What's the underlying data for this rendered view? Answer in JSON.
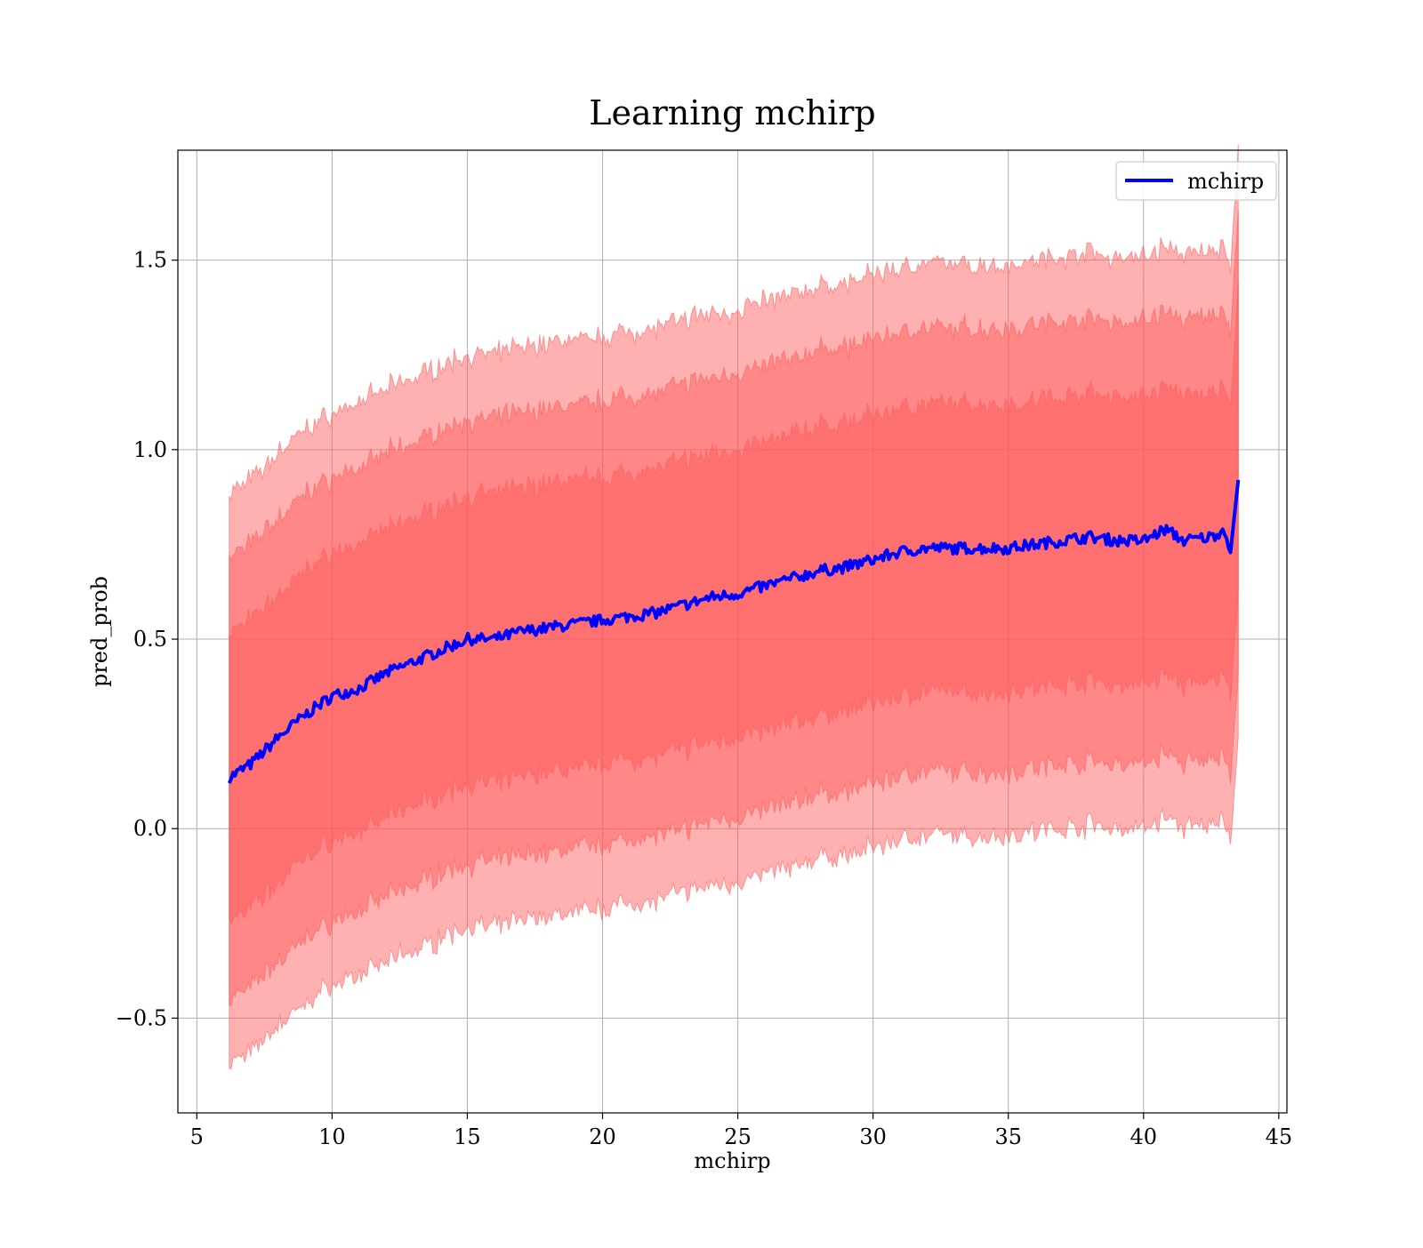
{
  "chart_data": {
    "type": "area",
    "title": "Learning mchirp",
    "xlabel": "mchirp",
    "ylabel": "pred_prob",
    "xlim": [
      4.3,
      45.3
    ],
    "ylim": [
      -0.75,
      1.79
    ],
    "xticks": [
      5,
      10,
      15,
      20,
      25,
      30,
      35,
      40,
      45
    ],
    "yticks": [
      -0.5,
      0.0,
      0.5,
      1.0,
      1.5
    ],
    "ytick_labels": [
      "−0.5",
      "0.0",
      "0.5",
      "1.0",
      "1.5"
    ],
    "grid": true,
    "legend": {
      "placement": "top-right",
      "entries": [
        "mchirp"
      ]
    },
    "colors": {
      "line": "#0000ff",
      "band": "#ff5a5a",
      "grid": "#b0b0b0"
    },
    "series": [
      {
        "name": "mchirp",
        "x": [
          6.2,
          7.0,
          8.0,
          9.0,
          10.0,
          11.0,
          12.0,
          13.0,
          14.0,
          15.0,
          16.0,
          17.0,
          18.0,
          19.0,
          20.0,
          21.0,
          22.0,
          23.0,
          24.0,
          25.0,
          26.0,
          27.0,
          28.0,
          29.0,
          30.0,
          31.0,
          32.0,
          33.0,
          34.0,
          35.0,
          36.0,
          37.0,
          38.0,
          39.0,
          40.0,
          40.8,
          41.5,
          42.5,
          43.0,
          43.2,
          43.5
        ],
        "y": [
          0.135,
          0.17,
          0.24,
          0.3,
          0.35,
          0.37,
          0.41,
          0.44,
          0.47,
          0.5,
          0.5,
          0.52,
          0.53,
          0.54,
          0.55,
          0.56,
          0.57,
          0.59,
          0.61,
          0.62,
          0.64,
          0.66,
          0.68,
          0.69,
          0.71,
          0.73,
          0.74,
          0.74,
          0.74,
          0.74,
          0.75,
          0.76,
          0.77,
          0.76,
          0.76,
          0.79,
          0.76,
          0.77,
          0.79,
          0.72,
          0.92
        ]
      }
    ],
    "bands": [
      {
        "sigma": 3,
        "upper_offset": 0.75,
        "lower_offset": 0.76,
        "opacity": 0.48
      },
      {
        "sigma": 2,
        "upper_offset": 0.58,
        "lower_offset": 0.59,
        "opacity": 0.48
      },
      {
        "sigma": 1,
        "upper_offset": 0.38,
        "lower_offset": 0.38,
        "opacity": 0.48
      }
    ]
  }
}
